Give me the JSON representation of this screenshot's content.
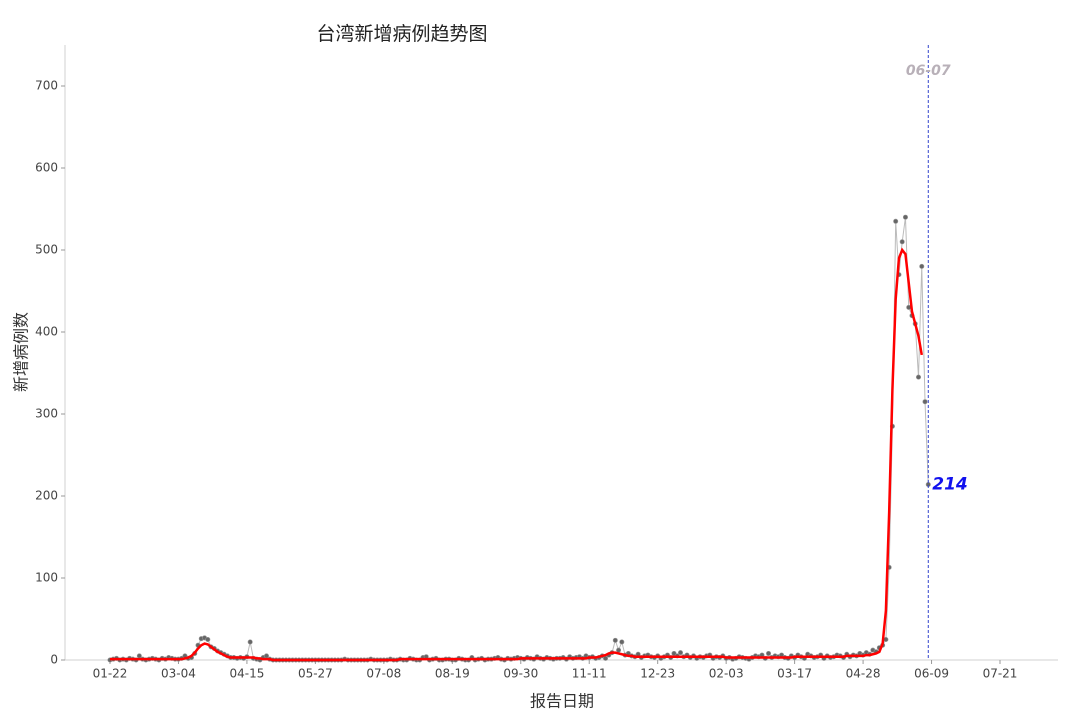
{
  "chart_data": {
    "type": "line",
    "title": "台湾新增病例趋势图",
    "x_label": "报告日期",
    "y_label": "新增病例数",
    "marker_label": "06-07",
    "ylim": [
      0,
      750
    ],
    "yticks": [
      0,
      100,
      200,
      300,
      400,
      500,
      600,
      700
    ],
    "categories": [
      "01-22",
      null,
      null,
      null,
      null,
      null,
      null,
      null,
      null,
      null,
      null,
      null,
      null,
      null,
      null,
      null,
      null,
      null,
      null,
      null,
      null,
      "03-04",
      null,
      null,
      null,
      null,
      null,
      null,
      null,
      null,
      null,
      null,
      null,
      null,
      null,
      null,
      null,
      null,
      null,
      null,
      null,
      null,
      "04-15",
      null,
      null,
      null,
      null,
      null,
      null,
      null,
      null,
      null,
      null,
      null,
      null,
      null,
      null,
      null,
      null,
      null,
      null,
      null,
      null,
      "05-27",
      null,
      null,
      null,
      null,
      null,
      null,
      null,
      null,
      null,
      null,
      null,
      null,
      null,
      null,
      null,
      null,
      null,
      null,
      null,
      null,
      "07-08",
      null,
      null,
      null,
      null,
      null,
      null,
      null,
      null,
      null,
      null,
      null,
      null,
      null,
      null,
      null,
      null,
      null,
      null,
      null,
      null,
      "08-19",
      null,
      null,
      null,
      null,
      null,
      null,
      null,
      null,
      null,
      null,
      null,
      null,
      null,
      null,
      null,
      null,
      null,
      null,
      null,
      null,
      "09-30",
      null,
      null,
      null,
      null,
      null,
      null,
      null,
      null,
      null,
      null,
      null,
      null,
      null,
      null,
      null,
      null,
      null,
      null,
      null,
      null,
      "11-11",
      null,
      null,
      null,
      null,
      null,
      null,
      null,
      null,
      null,
      null,
      null,
      null,
      null,
      null,
      null,
      null,
      null,
      null,
      null,
      null,
      "12-23",
      null,
      null,
      null,
      null,
      null,
      null,
      null,
      null,
      null,
      null,
      null,
      null,
      null,
      null,
      null,
      null,
      null,
      null,
      null,
      null,
      "02-03",
      null,
      null,
      null,
      null,
      null,
      null,
      null,
      null,
      null,
      null,
      null,
      null,
      null,
      null,
      null,
      null,
      null,
      null,
      null,
      null,
      "03-17",
      null,
      null,
      null,
      null,
      null,
      null,
      null,
      null,
      null,
      null,
      null,
      null,
      null,
      null,
      null,
      null,
      null,
      null,
      null,
      null,
      "04-28",
      null,
      null,
      null,
      null,
      null,
      null,
      null,
      null,
      null,
      null,
      null,
      null,
      null,
      null,
      null,
      null,
      null,
      null,
      null,
      null,
      "06-09",
      null,
      null,
      null,
      null,
      null,
      null,
      null,
      null,
      null,
      null,
      null,
      null,
      null,
      null,
      null,
      null,
      null,
      null,
      null,
      null,
      "07-21"
    ],
    "series": [
      {
        "color": "#666666",
        "markers": true,
        "values": [
          0,
          1,
          2,
          0,
          1,
          0,
          2,
          1,
          0,
          5,
          1,
          0,
          1,
          2,
          1,
          0,
          2,
          1,
          3,
          2,
          1,
          1,
          2,
          5,
          2,
          3,
          8,
          18,
          26,
          27,
          25,
          16,
          14,
          11,
          9,
          7,
          5,
          3,
          3,
          2,
          3,
          2,
          4,
          22,
          2,
          1,
          0,
          3,
          5,
          1,
          0,
          0,
          0,
          0,
          0,
          0,
          0,
          0,
          0,
          0,
          0,
          0,
          0,
          0,
          0,
          0,
          0,
          0,
          0,
          0,
          0,
          0,
          1,
          0,
          0,
          0,
          0,
          0,
          0,
          0,
          1,
          0,
          0,
          0,
          0,
          0,
          1,
          0,
          0,
          1,
          0,
          0,
          2,
          1,
          0,
          0,
          3,
          4,
          0,
          1,
          2,
          0,
          0,
          1,
          1,
          0,
          0,
          2,
          1,
          0,
          0,
          3,
          0,
          1,
          2,
          0,
          1,
          1,
          2,
          3,
          1,
          0,
          2,
          1,
          2,
          3,
          2,
          1,
          3,
          2,
          1,
          4,
          2,
          1,
          3,
          2,
          1,
          2,
          2,
          3,
          1,
          4,
          2,
          3,
          4,
          2,
          5,
          3,
          4,
          2,
          3,
          5,
          2,
          6,
          9,
          24,
          12,
          22,
          6,
          8,
          5,
          4,
          7,
          3,
          5,
          6,
          4,
          3,
          5,
          2,
          4,
          6,
          3,
          8,
          5,
          9,
          4,
          6,
          3,
          5,
          2,
          4,
          3,
          5,
          6,
          2,
          4,
          3,
          5,
          2,
          3,
          1,
          2,
          4,
          3,
          2,
          1,
          3,
          5,
          4,
          6,
          2,
          8,
          3,
          5,
          4,
          6,
          3,
          2,
          5,
          3,
          6,
          4,
          2,
          7,
          5,
          3,
          4,
          6,
          2,
          5,
          3,
          4,
          6,
          5,
          3,
          7,
          4,
          6,
          5,
          8,
          6,
          9,
          7,
          12,
          10,
          15,
          18,
          25,
          113,
          285,
          535,
          470,
          510,
          540,
          430,
          420,
          410,
          345,
          480,
          315,
          214,
          null,
          null,
          null,
          null,
          null,
          null,
          null,
          null,
          null,
          null,
          null,
          null,
          null,
          null,
          null,
          null,
          null,
          null,
          null,
          null,
          null,
          null
        ]
      },
      {
        "color": "#ff0000",
        "markers": false,
        "values": [
          1,
          1,
          1,
          1,
          1,
          1,
          1,
          1,
          1,
          1,
          1,
          1,
          1,
          1,
          1,
          1,
          1,
          1,
          1,
          1,
          1,
          1,
          1,
          2,
          3,
          5,
          9,
          14,
          18,
          20,
          19,
          16,
          13,
          10,
          8,
          6,
          4,
          3,
          3,
          3,
          3,
          3,
          3,
          3,
          3,
          2,
          2,
          1,
          1,
          1,
          0,
          0,
          0,
          0,
          0,
          0,
          0,
          0,
          0,
          0,
          0,
          0,
          0,
          0,
          0,
          0,
          0,
          0,
          0,
          0,
          0,
          0,
          0,
          0,
          0,
          0,
          0,
          0,
          0,
          0,
          0,
          0,
          0,
          0,
          0,
          0,
          0,
          0,
          0,
          1,
          1,
          1,
          1,
          1,
          1,
          1,
          1,
          1,
          1,
          1,
          1,
          1,
          1,
          1,
          1,
          1,
          1,
          1,
          1,
          1,
          1,
          1,
          1,
          1,
          1,
          1,
          1,
          1,
          1,
          1,
          1,
          1,
          1,
          1,
          1,
          1,
          2,
          2,
          2,
          2,
          2,
          2,
          2,
          2,
          2,
          2,
          2,
          2,
          2,
          2,
          2,
          2,
          2,
          2,
          2,
          2,
          2,
          3,
          3,
          3,
          4,
          5,
          6,
          8,
          9,
          9,
          8,
          7,
          6,
          5,
          5,
          4,
          4,
          4,
          4,
          4,
          4,
          4,
          4,
          4,
          4,
          4,
          4,
          4,
          4,
          4,
          4,
          4,
          4,
          4,
          4,
          4,
          4,
          4,
          4,
          4,
          4,
          4,
          4,
          3,
          3,
          3,
          3,
          3,
          3,
          3,
          3,
          3,
          3,
          3,
          3,
          3,
          3,
          3,
          3,
          3,
          3,
          3,
          3,
          3,
          4,
          4,
          4,
          4,
          4,
          4,
          4,
          4,
          4,
          4,
          4,
          4,
          4,
          4,
          4,
          4,
          5,
          5,
          5,
          5,
          5,
          5,
          6,
          6,
          7,
          8,
          10,
          20,
          60,
          180,
          330,
          440,
          490,
          500,
          495,
          460,
          425,
          410,
          395,
          372,
          null,
          null,
          null,
          null,
          null,
          null,
          null,
          null,
          null,
          null,
          null,
          null,
          null,
          null,
          null,
          null,
          null,
          null,
          null,
          null,
          null,
          null,
          null,
          null
        ]
      }
    ]
  }
}
